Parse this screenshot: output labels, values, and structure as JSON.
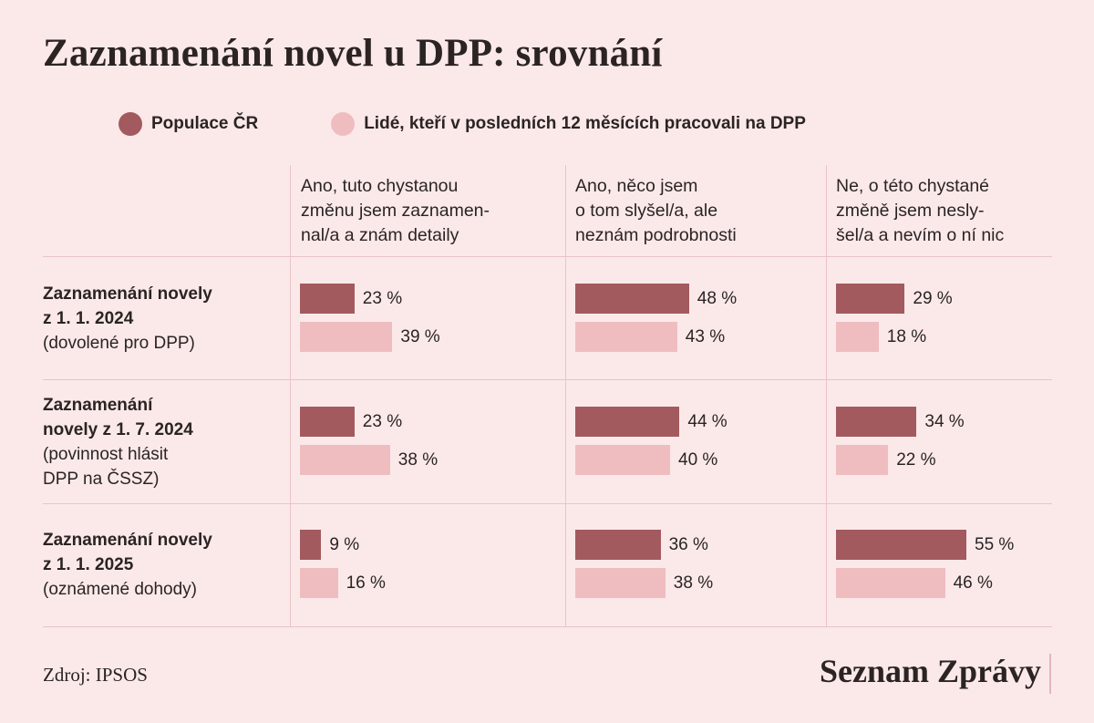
{
  "title": "Zaznamenání novel u DPP: srovnání",
  "legend": [
    {
      "label": "Populace ČR",
      "color": "#a35a5e"
    },
    {
      "label": "Lidé, kteří v posledních 12 měsících pracovali na DPP",
      "color": "#efbdc0"
    }
  ],
  "source": "Zdroj: IPSOS",
  "brand": "Seznam Zprávy",
  "chart_data": {
    "type": "bar",
    "scale_max": 100,
    "columns": [
      "Ano, tuto chystanou\nzměnu jsem zaznamen-\nnal/a a znám detaily",
      "Ano, něco jsem\no tom slyšel/a, ale\nneznám podrobnosti",
      "Ne, o této chystané\nzměně jsem nesly-\nšel/a a nevím o ní nic"
    ],
    "rows": [
      {
        "title": "Zaznamenání novely\nz 1. 1. 2024",
        "subtitle": "(dovolené pro DPP)"
      },
      {
        "title": "Zaznamenání\nnovely z 1. 7. 2024",
        "subtitle": "(povinnost hlásit\nDPP na ČSSZ)"
      },
      {
        "title": "Zaznamenání novely\nz 1. 1. 2025",
        "subtitle": "(oznámené dohody)"
      }
    ],
    "series": [
      {
        "name": "Populace ČR",
        "color": "#a35a5e",
        "values": [
          [
            23,
            48,
            29
          ],
          [
            23,
            44,
            34
          ],
          [
            9,
            36,
            55
          ]
        ],
        "labels": [
          [
            "23 %",
            "48 %",
            "29 %"
          ],
          [
            "23 %",
            "44 %",
            "34 %"
          ],
          [
            "9 %",
            "36 %",
            "55 %"
          ]
        ]
      },
      {
        "name": "Lidé, kteří v posledních 12 měsících pracovali na DPP",
        "color": "#efbdc0",
        "values": [
          [
            39,
            43,
            18
          ],
          [
            38,
            40,
            22
          ],
          [
            16,
            38,
            46
          ]
        ],
        "labels": [
          [
            "39 %",
            "43 %",
            "18 %"
          ],
          [
            "38 %",
            "40 %",
            "22 %"
          ],
          [
            "16 %",
            "38 %",
            "46 %"
          ]
        ]
      }
    ]
  }
}
